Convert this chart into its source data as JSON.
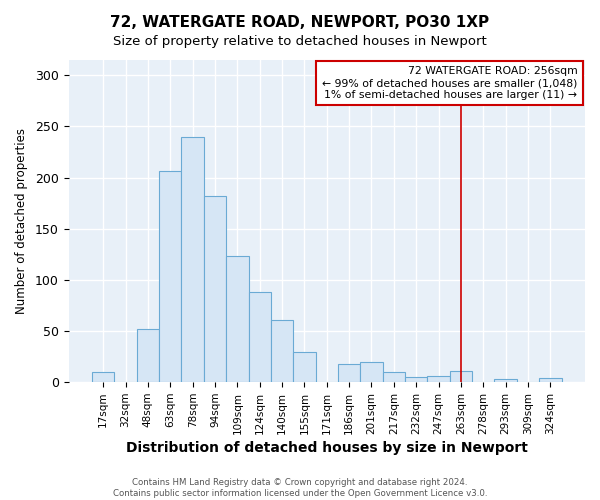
{
  "title": "72, WATERGATE ROAD, NEWPORT, PO30 1XP",
  "subtitle": "Size of property relative to detached houses in Newport",
  "xlabel": "Distribution of detached houses by size in Newport",
  "ylabel": "Number of detached properties",
  "bar_labels": [
    "17sqm",
    "32sqm",
    "48sqm",
    "63sqm",
    "78sqm",
    "94sqm",
    "109sqm",
    "124sqm",
    "140sqm",
    "155sqm",
    "171sqm",
    "186sqm",
    "201sqm",
    "217sqm",
    "232sqm",
    "247sqm",
    "263sqm",
    "278sqm",
    "293sqm",
    "309sqm",
    "324sqm"
  ],
  "bar_heights": [
    10,
    0,
    52,
    206,
    240,
    182,
    123,
    88,
    61,
    30,
    0,
    18,
    20,
    10,
    5,
    6,
    11,
    0,
    3,
    0,
    4
  ],
  "bar_color": "#d6e6f5",
  "bar_edge_color": "#6aaad4",
  "vline_x_index": 16,
  "vline_color": "#cc0000",
  "annotation_line1": "72 WATERGATE ROAD: 256sqm",
  "annotation_line2": "← 99% of detached houses are smaller (1,048)",
  "annotation_line3": "1% of semi-detached houses are larger (11) →",
  "annotation_box_color": "#ffffff",
  "annotation_border_color": "#cc0000",
  "ylim": [
    0,
    315
  ],
  "yticks": [
    0,
    50,
    100,
    150,
    200,
    250,
    300
  ],
  "footer_line1": "Contains HM Land Registry data © Crown copyright and database right 2024.",
  "footer_line2": "Contains public sector information licensed under the Open Government Licence v3.0.",
  "bg_color": "#ffffff",
  "plot_bg_color": "#e8f0f8"
}
